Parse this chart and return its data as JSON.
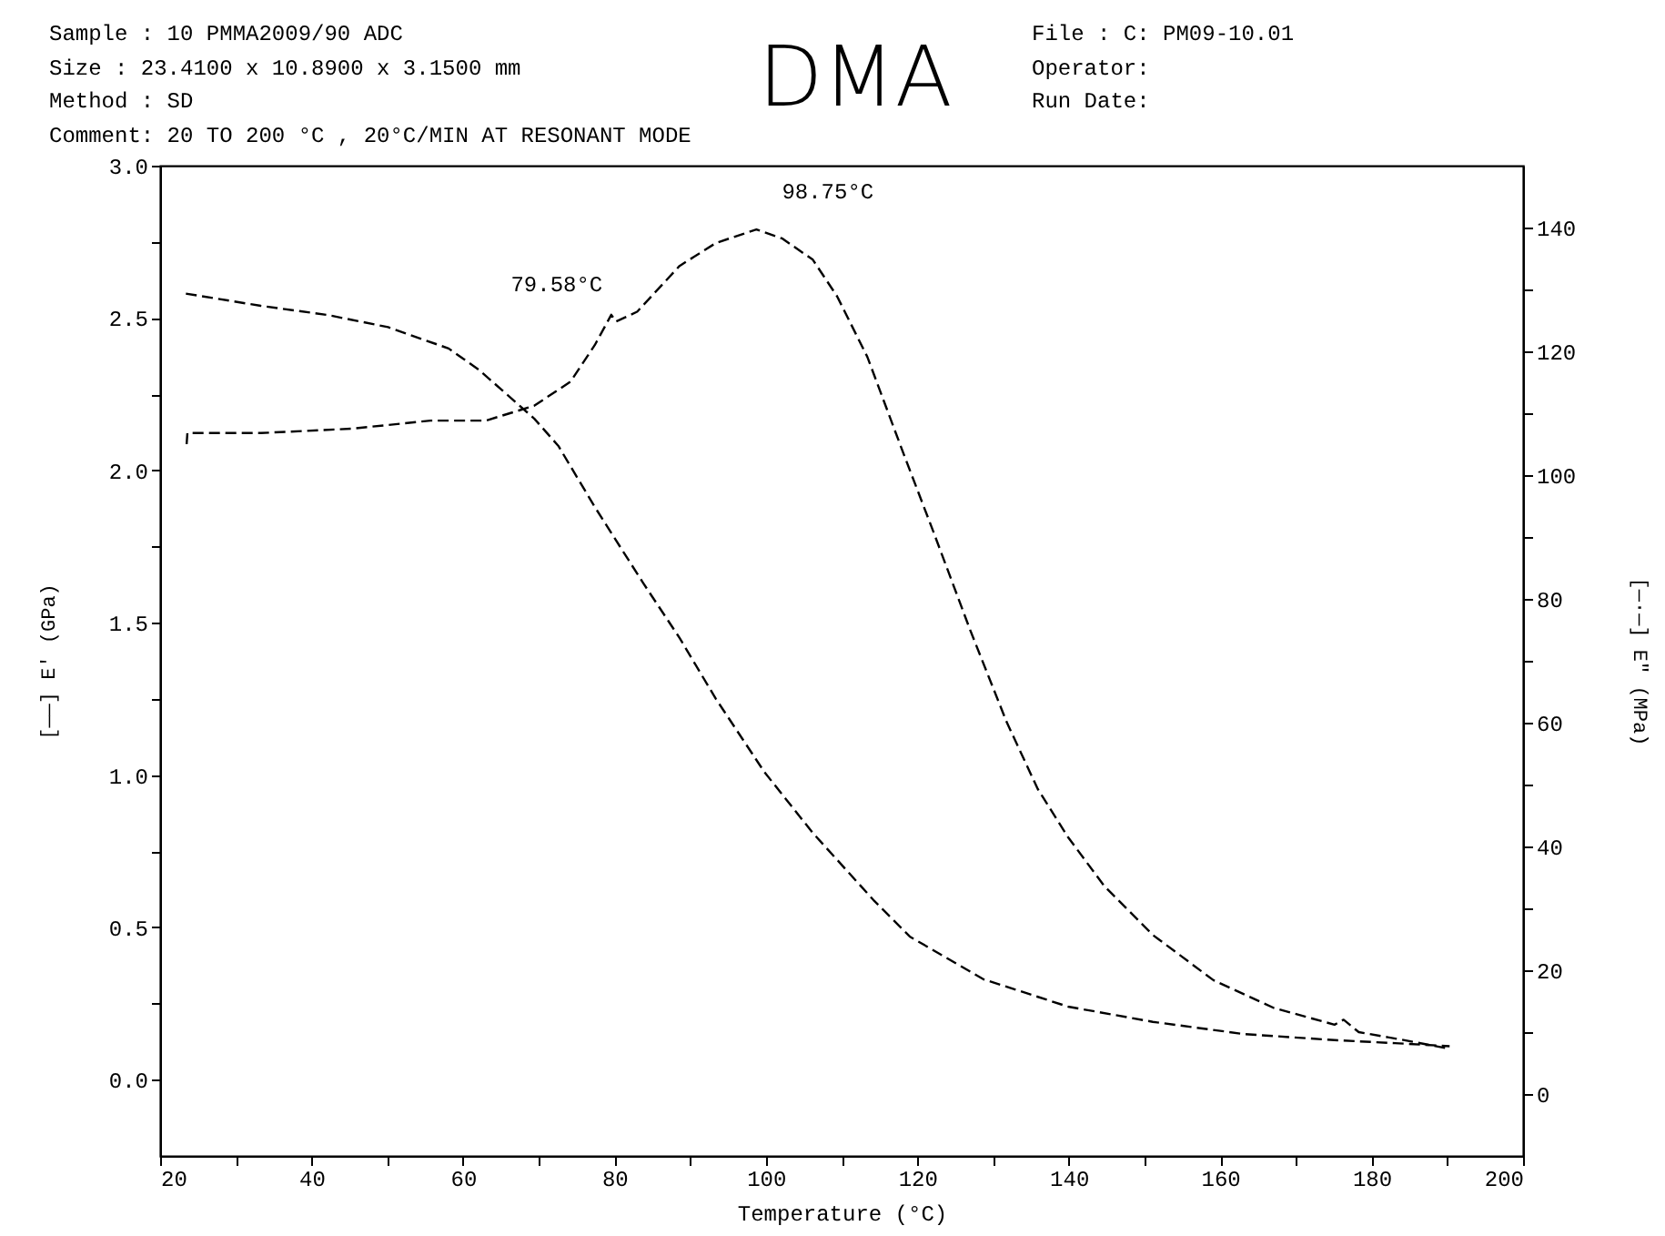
{
  "chart_data": {
    "type": "line",
    "title": "DMA",
    "xlabel": "Temperature (°C)",
    "ylabel": "[——] E' (GPa)",
    "y2label": "[—·—] E\" (MPa)",
    "xlim": [
      20,
      200
    ],
    "xticks": [
      20,
      {
        "value": 30,
        "label": null
      },
      40,
      {
        "value": 50,
        "label": null
      },
      60,
      {
        "value": 70,
        "label": null
      },
      80,
      {
        "value": 90,
        "label": null
      },
      100,
      {
        "value": 110,
        "label": null
      },
      120,
      {
        "value": 130,
        "label": null
      },
      140,
      {
        "value": 150,
        "label": null
      },
      160,
      {
        "value": 170,
        "label": null
      },
      180,
      {
        "value": 190,
        "label": null
      },
      200
    ],
    "ylim": [
      -0.25,
      3.0
    ],
    "yticks": [
      {
        "value": 0,
        "label": "0.0"
      },
      {
        "value": 0.25,
        "label": null
      },
      {
        "value": 0.5,
        "label": "0.5"
      },
      {
        "value": 0.75,
        "label": null
      },
      {
        "value": 1,
        "label": "1.0"
      },
      {
        "value": 1.25,
        "label": null
      },
      {
        "value": 1.5,
        "label": "1.5"
      },
      {
        "value": 1.75,
        "label": null
      },
      {
        "value": 2,
        "label": "2.0"
      },
      {
        "value": 2.25,
        "label": null
      },
      {
        "value": 2.5,
        "label": "2.5"
      },
      {
        "value": 2.75,
        "label": null
      },
      {
        "value": 3,
        "label": "3.0"
      }
    ],
    "y2lim": [
      -10,
      150
    ],
    "y2ticks": [
      0,
      {
        "value": 10,
        "label": null
      },
      20,
      {
        "value": 30,
        "label": null
      },
      40,
      {
        "value": 50,
        "label": null
      },
      60,
      {
        "value": 70,
        "label": null
      },
      80,
      {
        "value": 90,
        "label": null
      },
      100,
      {
        "value": 110,
        "label": null
      },
      120,
      {
        "value": 130,
        "label": null
      },
      140
    ],
    "line_style": "dashed",
    "series": [
      {
        "color": "#000000",
        "x": [
          23.4,
          33.3,
          42.1,
          50.1,
          58.1,
          62.1,
          69.4,
          72.6,
          77.4,
          83.8,
          88.6,
          93.4,
          99.8,
          106.2,
          114.2,
          119,
          128.7,
          139.9,
          151.1,
          163.1,
          175.1,
          183.1,
          190.3
        ],
        "values": [
          2.58,
          2.54,
          2.51,
          2.47,
          2.4,
          2.33,
          2.17,
          2.08,
          1.88,
          1.63,
          1.45,
          1.25,
          1.01,
          0.81,
          0.59,
          0.47,
          0.33,
          0.24,
          0.19,
          0.15,
          0.13,
          0.12,
          0.11
        ]
      },
      {
        "color": "#000000",
        "axis": "y2",
        "x": [
          23.5,
          23.6,
          33.3,
          45.3,
          55.7,
          63,
          69.4,
          74.2,
          77.4,
          79.58,
          80.2,
          83,
          88.6,
          93.4,
          98.75,
          102.2,
          106.2,
          109.4,
          113.4,
          118.2,
          122.2,
          127,
          131.8,
          135.9,
          139.9,
          144.7,
          151.1,
          159.1,
          167.1,
          175.1,
          176.3,
          178.3,
          183.9,
          190.3
        ],
        "values": [
          105,
          106.8,
          106.8,
          107.5,
          108.8,
          108.8,
          111.2,
          115.1,
          121,
          125.9,
          124.8,
          126.4,
          133.8,
          137.5,
          139.7,
          138.2,
          134.8,
          128.9,
          119.1,
          103.4,
          90.6,
          74.9,
          60.1,
          49.3,
          41.5,
          33.6,
          25.7,
          18.4,
          13.9,
          11.2,
          12,
          10,
          8.8,
          7.3
        ]
      }
    ],
    "annotations": [
      "Sample : 10 PMMA2009/90 ADC",
      "Size : 23.4100 x 10.8900 x 3.1500 mm",
      "Method : SD",
      "Comment: 20 TO 200 °C , 20°C/MIN AT RESONANT MODE",
      "File : C: PM09-10.01",
      "Operator:",
      "Run Date:",
      {
        "text": "79.58°C",
        "x": 79.58,
        "y": 2.48
      },
      {
        "text": "98.75°C",
        "x": 98.75,
        "y": 2.76
      }
    ]
  }
}
